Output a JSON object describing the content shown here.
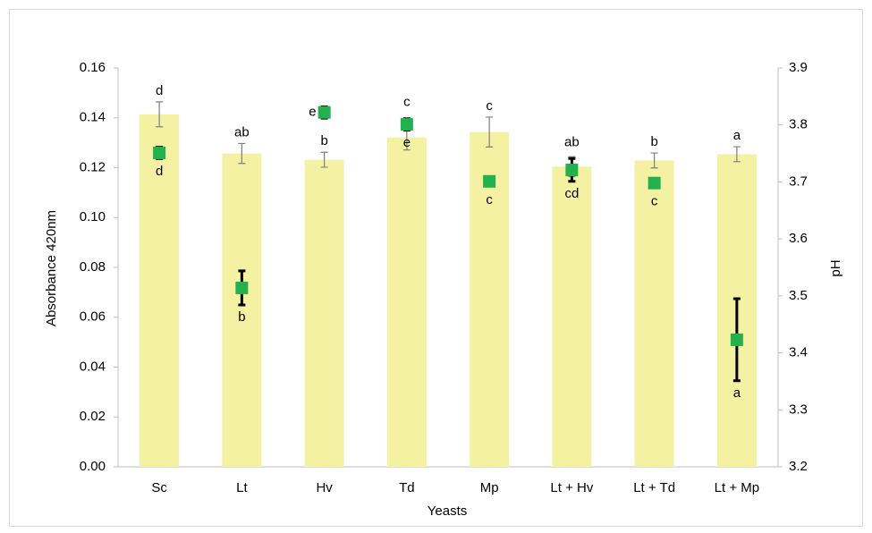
{
  "chart_data": {
    "type": "bar",
    "x_label": "Yeasts",
    "y_label": "Absorbance 420nm",
    "y2_label": "pH",
    "categories": [
      "Sc",
      "Lt",
      "Hv",
      "Td",
      "Mp",
      "Lt + Hv",
      "Lt + Td",
      "Lt + Mp"
    ],
    "ylim": [
      0,
      0.16
    ],
    "yticks": [
      {
        "value": 0,
        "label": "0.00"
      },
      {
        "value": 0.02,
        "label": "0.02"
      },
      {
        "value": 0.04,
        "label": "0.04"
      },
      {
        "value": 0.06,
        "label": "0.06"
      },
      {
        "value": 0.08,
        "label": "0.08"
      },
      {
        "value": 0.1,
        "label": "0.10"
      },
      {
        "value": 0.12,
        "label": "0.12"
      },
      {
        "value": 0.14,
        "label": "0.14"
      },
      {
        "value": 0.16,
        "label": "0.16"
      }
    ],
    "y2lim": [
      3.2,
      3.9
    ],
    "y2ticks": [
      3.2,
      3.3,
      3.4,
      3.5,
      3.6,
      3.7,
      3.8,
      3.9
    ],
    "series": [
      {
        "type": "bar",
        "color": "#f4f1a3",
        "values": [
          0.1414,
          0.1257,
          0.1232,
          0.1321,
          0.1343,
          0.1204,
          0.1229,
          0.1254
        ],
        "errors": [
          0.005,
          0.004,
          0.003,
          0.005,
          0.006,
          0.004,
          0.003,
          0.003
        ],
        "letters": [
          "d",
          "ab",
          "b",
          "c",
          "c",
          "ab",
          "b",
          "a"
        ]
      },
      {
        "type": "scatter",
        "axis": "y2",
        "color": "#22b14c",
        "values": [
          3.751,
          3.514,
          3.822,
          3.801,
          3.701,
          3.721,
          3.698,
          3.423
        ],
        "errors": [
          0.01,
          0.03,
          0.01,
          0.01,
          0,
          0.02,
          0,
          0.072
        ],
        "letters": [
          "d",
          "b",
          "e",
          "e",
          "c",
          "cd",
          "c",
          "a"
        ]
      }
    ]
  }
}
